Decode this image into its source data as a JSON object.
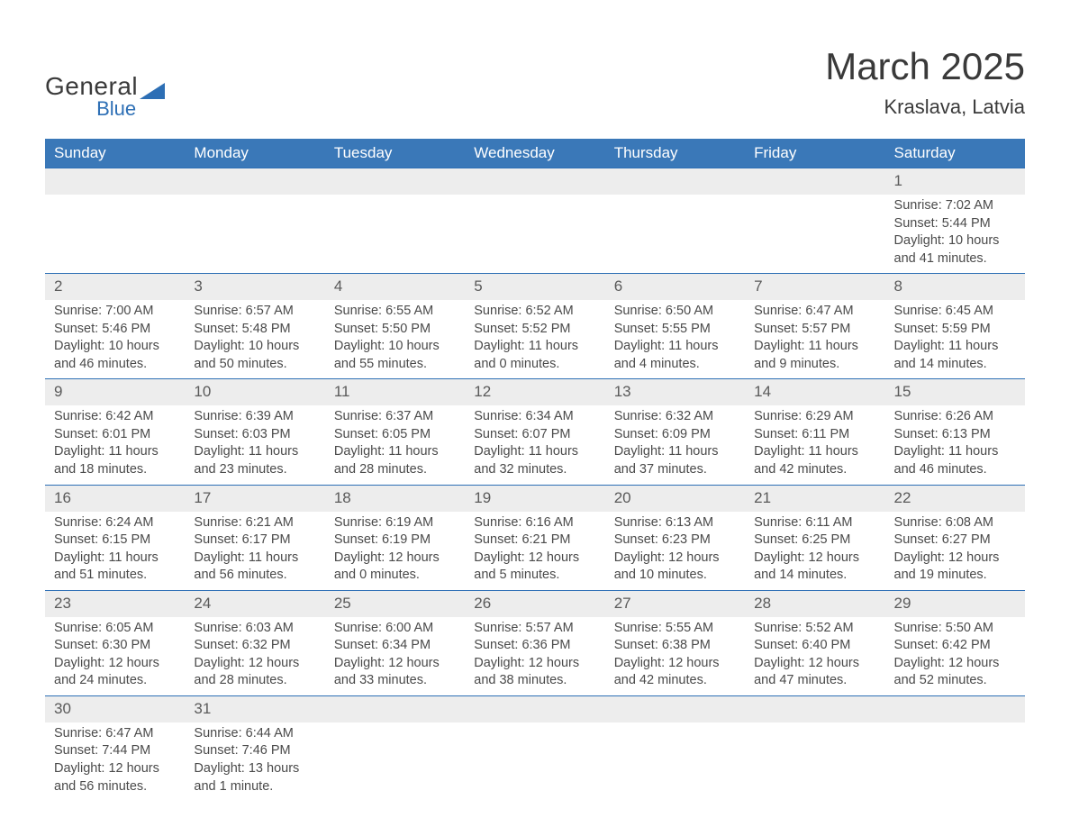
{
  "logo": {
    "general": "General",
    "blue": "Blue",
    "shape_color": "#2d6fb5"
  },
  "title": "March 2025",
  "location": "Kraslava, Latvia",
  "colors": {
    "header_bg": "#3a78b8",
    "header_text": "#ffffff",
    "daynum_bg": "#ededed",
    "row_border": "#2d6fb5",
    "body_text": "#4a4a4a",
    "title_text": "#3a3a3a"
  },
  "weekdays": [
    "Sunday",
    "Monday",
    "Tuesday",
    "Wednesday",
    "Thursday",
    "Friday",
    "Saturday"
  ],
  "weeks": [
    [
      null,
      null,
      null,
      null,
      null,
      null,
      {
        "n": "1",
        "sr": "Sunrise: 7:02 AM",
        "ss": "Sunset: 5:44 PM",
        "dl": "Daylight: 10 hours and 41 minutes."
      }
    ],
    [
      {
        "n": "2",
        "sr": "Sunrise: 7:00 AM",
        "ss": "Sunset: 5:46 PM",
        "dl": "Daylight: 10 hours and 46 minutes."
      },
      {
        "n": "3",
        "sr": "Sunrise: 6:57 AM",
        "ss": "Sunset: 5:48 PM",
        "dl": "Daylight: 10 hours and 50 minutes."
      },
      {
        "n": "4",
        "sr": "Sunrise: 6:55 AM",
        "ss": "Sunset: 5:50 PM",
        "dl": "Daylight: 10 hours and 55 minutes."
      },
      {
        "n": "5",
        "sr": "Sunrise: 6:52 AM",
        "ss": "Sunset: 5:52 PM",
        "dl": "Daylight: 11 hours and 0 minutes."
      },
      {
        "n": "6",
        "sr": "Sunrise: 6:50 AM",
        "ss": "Sunset: 5:55 PM",
        "dl": "Daylight: 11 hours and 4 minutes."
      },
      {
        "n": "7",
        "sr": "Sunrise: 6:47 AM",
        "ss": "Sunset: 5:57 PM",
        "dl": "Daylight: 11 hours and 9 minutes."
      },
      {
        "n": "8",
        "sr": "Sunrise: 6:45 AM",
        "ss": "Sunset: 5:59 PM",
        "dl": "Daylight: 11 hours and 14 minutes."
      }
    ],
    [
      {
        "n": "9",
        "sr": "Sunrise: 6:42 AM",
        "ss": "Sunset: 6:01 PM",
        "dl": "Daylight: 11 hours and 18 minutes."
      },
      {
        "n": "10",
        "sr": "Sunrise: 6:39 AM",
        "ss": "Sunset: 6:03 PM",
        "dl": "Daylight: 11 hours and 23 minutes."
      },
      {
        "n": "11",
        "sr": "Sunrise: 6:37 AM",
        "ss": "Sunset: 6:05 PM",
        "dl": "Daylight: 11 hours and 28 minutes."
      },
      {
        "n": "12",
        "sr": "Sunrise: 6:34 AM",
        "ss": "Sunset: 6:07 PM",
        "dl": "Daylight: 11 hours and 32 minutes."
      },
      {
        "n": "13",
        "sr": "Sunrise: 6:32 AM",
        "ss": "Sunset: 6:09 PM",
        "dl": "Daylight: 11 hours and 37 minutes."
      },
      {
        "n": "14",
        "sr": "Sunrise: 6:29 AM",
        "ss": "Sunset: 6:11 PM",
        "dl": "Daylight: 11 hours and 42 minutes."
      },
      {
        "n": "15",
        "sr": "Sunrise: 6:26 AM",
        "ss": "Sunset: 6:13 PM",
        "dl": "Daylight: 11 hours and 46 minutes."
      }
    ],
    [
      {
        "n": "16",
        "sr": "Sunrise: 6:24 AM",
        "ss": "Sunset: 6:15 PM",
        "dl": "Daylight: 11 hours and 51 minutes."
      },
      {
        "n": "17",
        "sr": "Sunrise: 6:21 AM",
        "ss": "Sunset: 6:17 PM",
        "dl": "Daylight: 11 hours and 56 minutes."
      },
      {
        "n": "18",
        "sr": "Sunrise: 6:19 AM",
        "ss": "Sunset: 6:19 PM",
        "dl": "Daylight: 12 hours and 0 minutes."
      },
      {
        "n": "19",
        "sr": "Sunrise: 6:16 AM",
        "ss": "Sunset: 6:21 PM",
        "dl": "Daylight: 12 hours and 5 minutes."
      },
      {
        "n": "20",
        "sr": "Sunrise: 6:13 AM",
        "ss": "Sunset: 6:23 PM",
        "dl": "Daylight: 12 hours and 10 minutes."
      },
      {
        "n": "21",
        "sr": "Sunrise: 6:11 AM",
        "ss": "Sunset: 6:25 PM",
        "dl": "Daylight: 12 hours and 14 minutes."
      },
      {
        "n": "22",
        "sr": "Sunrise: 6:08 AM",
        "ss": "Sunset: 6:27 PM",
        "dl": "Daylight: 12 hours and 19 minutes."
      }
    ],
    [
      {
        "n": "23",
        "sr": "Sunrise: 6:05 AM",
        "ss": "Sunset: 6:30 PM",
        "dl": "Daylight: 12 hours and 24 minutes."
      },
      {
        "n": "24",
        "sr": "Sunrise: 6:03 AM",
        "ss": "Sunset: 6:32 PM",
        "dl": "Daylight: 12 hours and 28 minutes."
      },
      {
        "n": "25",
        "sr": "Sunrise: 6:00 AM",
        "ss": "Sunset: 6:34 PM",
        "dl": "Daylight: 12 hours and 33 minutes."
      },
      {
        "n": "26",
        "sr": "Sunrise: 5:57 AM",
        "ss": "Sunset: 6:36 PM",
        "dl": "Daylight: 12 hours and 38 minutes."
      },
      {
        "n": "27",
        "sr": "Sunrise: 5:55 AM",
        "ss": "Sunset: 6:38 PM",
        "dl": "Daylight: 12 hours and 42 minutes."
      },
      {
        "n": "28",
        "sr": "Sunrise: 5:52 AM",
        "ss": "Sunset: 6:40 PM",
        "dl": "Daylight: 12 hours and 47 minutes."
      },
      {
        "n": "29",
        "sr": "Sunrise: 5:50 AM",
        "ss": "Sunset: 6:42 PM",
        "dl": "Daylight: 12 hours and 52 minutes."
      }
    ],
    [
      {
        "n": "30",
        "sr": "Sunrise: 6:47 AM",
        "ss": "Sunset: 7:44 PM",
        "dl": "Daylight: 12 hours and 56 minutes."
      },
      {
        "n": "31",
        "sr": "Sunrise: 6:44 AM",
        "ss": "Sunset: 7:46 PM",
        "dl": "Daylight: 13 hours and 1 minute."
      },
      null,
      null,
      null,
      null,
      null
    ]
  ]
}
